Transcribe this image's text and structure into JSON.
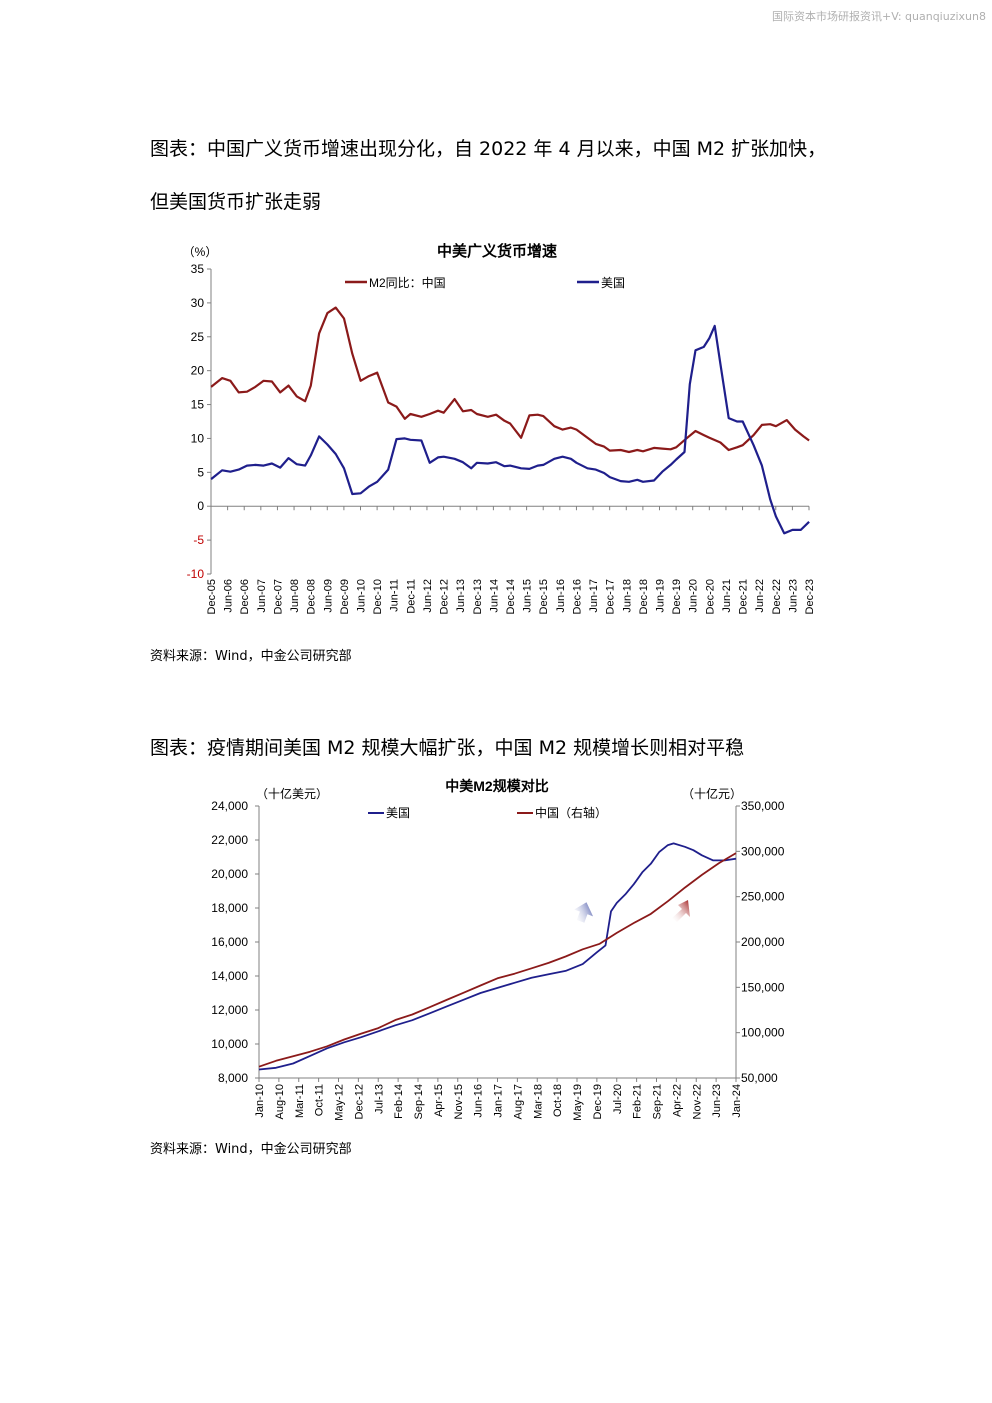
{
  "watermark": "国际资本市场研报资讯+V: quanqiuzixun8",
  "figure1": {
    "caption_line1": "图表：中国广义货币增速出现分化，自 2022 年 4 月以来，中国 M2 扩张加快，",
    "caption_line2": "但美国货币扩张走弱",
    "source": "资料来源：Wind，中金公司研究部"
  },
  "figure2": {
    "caption": "图表：疫情期间美国 M2 规模大幅扩张，中国 M2 规模增长则相对平稳",
    "source": "资料来源：Wind，中金公司研究部"
  },
  "colors": {
    "china": "#8B1A1A",
    "us": "#1F1F8C",
    "axis": "#808080"
  },
  "chart_data": [
    {
      "type": "line",
      "title": "中美广义货币增速",
      "ylabel": "（%）",
      "ylim": [
        -10,
        35
      ],
      "yticks": [
        -10,
        -5,
        0,
        5,
        10,
        15,
        20,
        25,
        30,
        35
      ],
      "xlim": [
        2005.917,
        2023.917
      ],
      "xticks": [
        "Dec-05",
        "Jun-06",
        "Dec-06",
        "Jun-07",
        "Dec-07",
        "Jun-08",
        "Dec-08",
        "Jun-09",
        "Dec-09",
        "Jun-10",
        "Dec-10",
        "Jun-11",
        "Dec-11",
        "Jun-12",
        "Dec-12",
        "Jun-13",
        "Dec-13",
        "Jun-14",
        "Dec-14",
        "Jun-15",
        "Dec-15",
        "Jun-16",
        "Dec-16",
        "Jun-17",
        "Dec-17",
        "Jun-18",
        "Dec-18",
        "Jun-19",
        "Dec-19",
        "Jun-20",
        "Dec-20",
        "Jun-21",
        "Dec-21",
        "Jun-22",
        "Dec-22",
        "Jun-23",
        "Dec-23"
      ],
      "legend_placement": "top",
      "series": [
        {
          "name": "M2同比：中国",
          "color": "#8B1A1A",
          "x": [
            2005.92,
            2006.25,
            2006.5,
            2006.75,
            2007.0,
            2007.25,
            2007.5,
            2007.75,
            2008.0,
            2008.25,
            2008.5,
            2008.75,
            2008.92,
            2009.17,
            2009.42,
            2009.67,
            2009.92,
            2010.17,
            2010.42,
            2010.67,
            2010.92,
            2011.25,
            2011.5,
            2011.75,
            2011.92,
            2012.25,
            2012.5,
            2012.75,
            2012.92,
            2013.25,
            2013.5,
            2013.75,
            2013.92,
            2014.25,
            2014.5,
            2014.75,
            2014.92,
            2015.25,
            2015.5,
            2015.75,
            2015.92,
            2016.25,
            2016.5,
            2016.75,
            2016.92,
            2017.25,
            2017.5,
            2017.75,
            2017.92,
            2018.25,
            2018.5,
            2018.75,
            2018.92,
            2019.25,
            2019.5,
            2019.75,
            2019.92,
            2020.25,
            2020.5,
            2020.75,
            2020.92,
            2021.25,
            2021.5,
            2021.75,
            2021.92,
            2022.25,
            2022.5,
            2022.75,
            2022.92,
            2023.25,
            2023.5,
            2023.75,
            2023.92
          ],
          "y": [
            17.6,
            18.9,
            18.5,
            16.8,
            16.9,
            17.6,
            18.5,
            18.4,
            16.8,
            17.8,
            16.2,
            15.5,
            17.8,
            25.5,
            28.5,
            29.3,
            27.7,
            22.5,
            18.5,
            19.2,
            19.7,
            15.3,
            14.7,
            12.9,
            13.6,
            13.2,
            13.6,
            14.1,
            13.8,
            15.8,
            14.0,
            14.2,
            13.6,
            13.2,
            13.5,
            12.6,
            12.2,
            10.1,
            13.4,
            13.5,
            13.3,
            11.8,
            11.3,
            11.6,
            11.3,
            10.1,
            9.2,
            8.8,
            8.2,
            8.3,
            8.0,
            8.3,
            8.1,
            8.6,
            8.5,
            8.4,
            8.7,
            10.1,
            11.1,
            10.5,
            10.1,
            9.4,
            8.3,
            8.7,
            9.0,
            10.5,
            12.0,
            12.1,
            11.8,
            12.7,
            11.3,
            10.3,
            9.7
          ]
        },
        {
          "name": "美国",
          "color": "#1F1F8C",
          "x": [
            2005.92,
            2006.25,
            2006.5,
            2006.75,
            2007.0,
            2007.25,
            2007.5,
            2007.75,
            2008.0,
            2008.25,
            2008.5,
            2008.75,
            2008.92,
            2009.17,
            2009.42,
            2009.67,
            2009.92,
            2010.17,
            2010.42,
            2010.67,
            2010.92,
            2011.25,
            2011.5,
            2011.75,
            2011.92,
            2012.25,
            2012.5,
            2012.75,
            2012.92,
            2013.25,
            2013.5,
            2013.75,
            2013.92,
            2014.25,
            2014.5,
            2014.75,
            2014.92,
            2015.25,
            2015.5,
            2015.75,
            2015.92,
            2016.25,
            2016.5,
            2016.75,
            2016.92,
            2017.25,
            2017.5,
            2017.75,
            2017.92,
            2018.25,
            2018.5,
            2018.75,
            2018.92,
            2019.25,
            2019.5,
            2019.75,
            2019.92,
            2020.17,
            2020.33,
            2020.5,
            2020.75,
            2020.92,
            2021.08,
            2021.25,
            2021.5,
            2021.75,
            2021.92,
            2022.25,
            2022.5,
            2022.75,
            2022.92,
            2023.17,
            2023.42,
            2023.67,
            2023.92
          ],
          "y": [
            4.0,
            5.3,
            5.1,
            5.4,
            6.0,
            6.1,
            6.0,
            6.3,
            5.7,
            7.1,
            6.2,
            6.0,
            7.5,
            10.3,
            9.1,
            7.7,
            5.6,
            1.8,
            1.9,
            2.9,
            3.6,
            5.4,
            9.9,
            10.0,
            9.8,
            9.7,
            6.4,
            7.2,
            7.3,
            7.0,
            6.5,
            5.6,
            6.4,
            6.3,
            6.5,
            5.9,
            6.0,
            5.6,
            5.5,
            6.0,
            6.1,
            7.0,
            7.3,
            7.0,
            6.4,
            5.6,
            5.4,
            4.9,
            4.3,
            3.7,
            3.6,
            3.9,
            3.6,
            3.8,
            5.1,
            6.1,
            6.9,
            8.0,
            18.0,
            23.0,
            23.5,
            24.8,
            26.6,
            21.0,
            13.0,
            12.5,
            12.5,
            9.0,
            6.0,
            1.0,
            -1.5,
            -4.0,
            -3.5,
            -3.5,
            -2.3
          ]
        }
      ]
    },
    {
      "type": "line",
      "title": "中美M2规模对比",
      "ylabel_left": "（十亿美元）",
      "ylabel_right": "（十亿元）",
      "ylim_left": [
        8000,
        24000
      ],
      "yticks_left": [
        "8,000",
        "10,000",
        "12,000",
        "14,000",
        "16,000",
        "18,000",
        "20,000",
        "22,000",
        "24,000"
      ],
      "ylim_right": [
        50000,
        350000
      ],
      "yticks_right": [
        "50,000",
        "100,000",
        "150,000",
        "200,000",
        "250,000",
        "300,000",
        "350,000"
      ],
      "xlim": [
        2010.0,
        2024.0
      ],
      "xticks": [
        "Jan-10",
        "Aug-10",
        "Mar-11",
        "Oct-11",
        "May-12",
        "Dec-12",
        "Jul-13",
        "Feb-14",
        "Sep-14",
        "Apr-15",
        "Nov-15",
        "Jun-16",
        "Jan-17",
        "Aug-17",
        "Mar-18",
        "Oct-18",
        "May-19",
        "Dec-19",
        "Jul-20",
        "Feb-21",
        "Sep-21",
        "Apr-22",
        "Nov-22",
        "Jun-23",
        "Jan-24"
      ],
      "legend_placement": "top",
      "series": [
        {
          "name": "美国",
          "axis": "left",
          "color": "#1F1F8C",
          "x": [
            2010.0,
            2010.5,
            2011.0,
            2011.5,
            2012.0,
            2012.5,
            2013.0,
            2013.5,
            2014.0,
            2014.5,
            2015.0,
            2015.5,
            2016.0,
            2016.5,
            2017.0,
            2017.5,
            2018.0,
            2018.5,
            2019.0,
            2019.5,
            2019.92,
            2020.17,
            2020.33,
            2020.5,
            2020.75,
            2021.0,
            2021.25,
            2021.5,
            2021.75,
            2022.0,
            2022.17,
            2022.5,
            2022.75,
            2023.0,
            2023.33,
            2023.67,
            2024.0
          ],
          "y": [
            8500,
            8600,
            8850,
            9300,
            9750,
            10100,
            10400,
            10750,
            11100,
            11400,
            11800,
            12200,
            12600,
            13000,
            13300,
            13600,
            13900,
            14100,
            14300,
            14700,
            15400,
            15800,
            17800,
            18300,
            18800,
            19400,
            20100,
            20600,
            21300,
            21700,
            21800,
            21600,
            21400,
            21100,
            20800,
            20800,
            20900
          ]
        },
        {
          "name": "中国（右轴）",
          "axis": "right",
          "color": "#8B1A1A",
          "x": [
            2010.0,
            2010.5,
            2011.0,
            2011.5,
            2012.0,
            2012.5,
            2013.0,
            2013.5,
            2014.0,
            2014.5,
            2015.0,
            2015.5,
            2016.0,
            2016.5,
            2017.0,
            2017.5,
            2018.0,
            2018.5,
            2019.0,
            2019.5,
            2020.0,
            2020.5,
            2021.0,
            2021.5,
            2022.0,
            2022.5,
            2023.0,
            2023.5,
            2024.0
          ],
          "y": [
            62500,
            69000,
            74000,
            79000,
            85000,
            92500,
            99000,
            105000,
            114000,
            120000,
            128000,
            136000,
            144000,
            152000,
            160000,
            165000,
            171000,
            177000,
            184000,
            192000,
            198000,
            210000,
            221000,
            231000,
            245000,
            260000,
            274000,
            287000,
            298000
          ]
        }
      ]
    }
  ]
}
